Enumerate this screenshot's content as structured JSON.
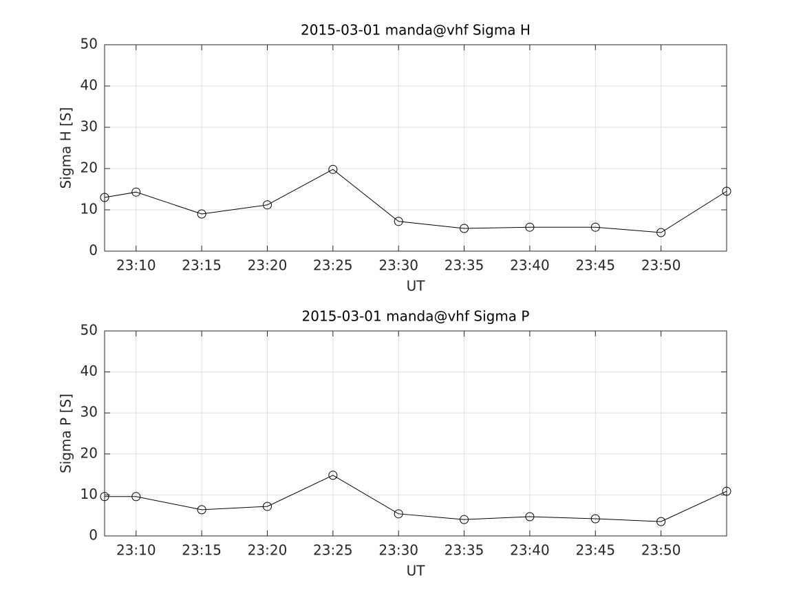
{
  "chart_data": [
    {
      "type": "line",
      "title": "2015-03-01  manda@vhf Sigma H",
      "xlabel": "UT",
      "ylabel": "Sigma H [S]",
      "x": [
        1387.6,
        1390,
        1395,
        1400,
        1405,
        1410,
        1415,
        1420,
        1425,
        1430,
        1435
      ],
      "series": [
        {
          "color": "#000000",
          "values": [
            13.0,
            14.3,
            9.0,
            11.2,
            19.8,
            7.2,
            5.5,
            5.8,
            5.8,
            4.5,
            14.5
          ]
        }
      ],
      "xlim": [
        1387.6,
        1435
      ],
      "ylim": [
        0,
        50
      ],
      "yticks": [
        0,
        10,
        20,
        30,
        40,
        50
      ],
      "xticks": [
        {
          "value": 1390,
          "label": "23:10"
        },
        {
          "value": 1395,
          "label": "23:15"
        },
        {
          "value": 1400,
          "label": "23:20"
        },
        {
          "value": 1405,
          "label": "23:25"
        },
        {
          "value": 1410,
          "label": "23:30"
        },
        {
          "value": 1415,
          "label": "23:35"
        },
        {
          "value": 1420,
          "label": "23:40"
        },
        {
          "value": 1425,
          "label": "23:45"
        },
        {
          "value": 1430,
          "label": "23:50"
        }
      ],
      "grid": true
    },
    {
      "type": "line",
      "title": "2015-03-01  manda@vhf Sigma P",
      "xlabel": "UT",
      "ylabel": "Sigma P [S]",
      "x": [
        1387.6,
        1390,
        1395,
        1400,
        1405,
        1410,
        1415,
        1420,
        1425,
        1430,
        1435
      ],
      "series": [
        {
          "color": "#000000",
          "values": [
            9.6,
            9.6,
            6.4,
            7.2,
            14.8,
            5.4,
            4.0,
            4.7,
            4.2,
            3.5,
            10.9
          ]
        }
      ],
      "xlim": [
        1387.6,
        1435
      ],
      "ylim": [
        0,
        50
      ],
      "yticks": [
        0,
        10,
        20,
        30,
        40,
        50
      ],
      "xticks": [
        {
          "value": 1390,
          "label": "23:10"
        },
        {
          "value": 1395,
          "label": "23:15"
        },
        {
          "value": 1400,
          "label": "23:20"
        },
        {
          "value": 1405,
          "label": "23:25"
        },
        {
          "value": 1410,
          "label": "23:30"
        },
        {
          "value": 1415,
          "label": "23:35"
        },
        {
          "value": 1420,
          "label": "23:40"
        },
        {
          "value": 1425,
          "label": "23:45"
        },
        {
          "value": 1430,
          "label": "23:50"
        }
      ],
      "grid": true
    }
  ]
}
